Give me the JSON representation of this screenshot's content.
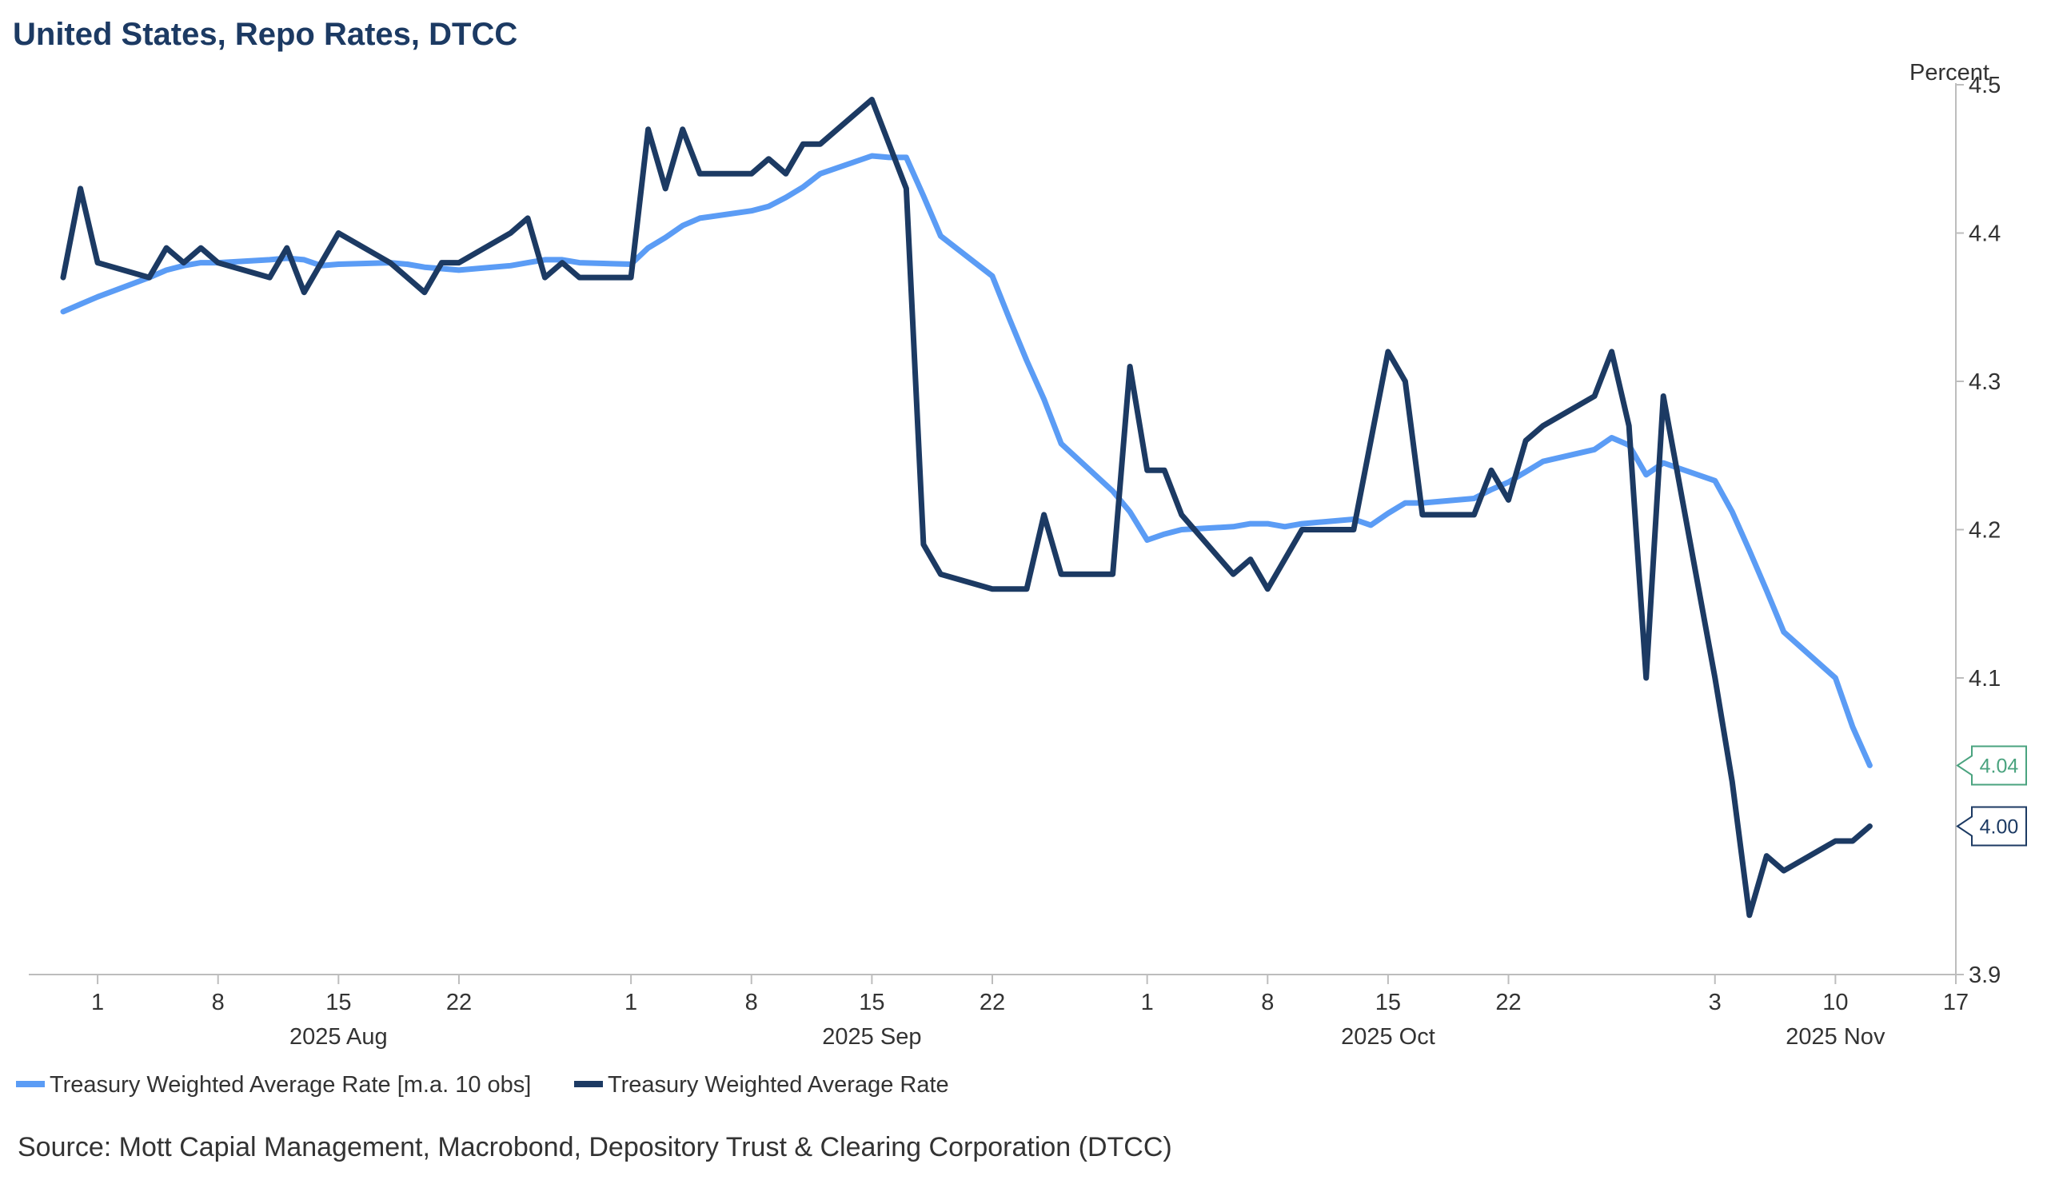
{
  "chart_data": {
    "type": "line",
    "title": "United States, Repo Rates, DTCC",
    "y_unit_label": "Percent",
    "ylim": [
      3.9,
      4.5
    ],
    "y_ticks": [
      "3.9",
      "4.0",
      "4.1",
      "4.2",
      "4.3",
      "4.4",
      "4.5"
    ],
    "y_tick_values": [
      3.9,
      4.0,
      4.1,
      4.2,
      4.3,
      4.4,
      4.5
    ],
    "x_range": [
      "2025-07-28",
      "2025-11-17"
    ],
    "x_ticks": [
      {
        "date": "2025-08-01",
        "label": "1"
      },
      {
        "date": "2025-08-08",
        "label": "8"
      },
      {
        "date": "2025-08-15",
        "label": "15"
      },
      {
        "date": "2025-08-22",
        "label": "22"
      },
      {
        "date": "2025-09-01",
        "label": "1"
      },
      {
        "date": "2025-09-08",
        "label": "8"
      },
      {
        "date": "2025-09-15",
        "label": "15"
      },
      {
        "date": "2025-09-22",
        "label": "22"
      },
      {
        "date": "2025-10-01",
        "label": "1"
      },
      {
        "date": "2025-10-08",
        "label": "8"
      },
      {
        "date": "2025-10-15",
        "label": "15"
      },
      {
        "date": "2025-10-22",
        "label": "22"
      },
      {
        "date": "2025-11-03",
        "label": "3"
      },
      {
        "date": "2025-11-10",
        "label": "10"
      },
      {
        "date": "2025-11-17",
        "label": "17"
      }
    ],
    "month_labels": [
      {
        "date": "2025-08-15",
        "label": "2025 Aug"
      },
      {
        "date": "2025-09-15",
        "label": "2025 Sep"
      },
      {
        "date": "2025-10-15",
        "label": "2025 Oct"
      },
      {
        "date": "2025-11-10",
        "label": "2025 Nov"
      }
    ],
    "grid": false,
    "legend_position": "bottom-left",
    "series": [
      {
        "name": "Treasury Weighted Average Rate [m.a. 10 obs]",
        "color": "#5b9cf5",
        "last_value_label": "4.04",
        "label_color": "#4aa37f",
        "points": [
          [
            "2025-07-30",
            4.347
          ],
          [
            "2025-07-31",
            4.352
          ],
          [
            "2025-08-01",
            4.357
          ],
          [
            "2025-08-04",
            4.37
          ],
          [
            "2025-08-05",
            4.375
          ],
          [
            "2025-08-06",
            4.378
          ],
          [
            "2025-08-07",
            4.38
          ],
          [
            "2025-08-08",
            4.38
          ],
          [
            "2025-08-11",
            4.382
          ],
          [
            "2025-08-12",
            4.383
          ],
          [
            "2025-08-13",
            4.382
          ],
          [
            "2025-08-14",
            4.378
          ],
          [
            "2025-08-15",
            4.379
          ],
          [
            "2025-08-18",
            4.38
          ],
          [
            "2025-08-19",
            4.379
          ],
          [
            "2025-08-20",
            4.377
          ],
          [
            "2025-08-21",
            4.376
          ],
          [
            "2025-08-22",
            4.375
          ],
          [
            "2025-08-25",
            4.378
          ],
          [
            "2025-08-26",
            4.38
          ],
          [
            "2025-08-27",
            4.382
          ],
          [
            "2025-08-28",
            4.382
          ],
          [
            "2025-08-29",
            4.38
          ],
          [
            "2025-09-01",
            4.379
          ],
          [
            "2025-09-02",
            4.39
          ],
          [
            "2025-09-03",
            4.397
          ],
          [
            "2025-09-04",
            4.405
          ],
          [
            "2025-09-05",
            4.41
          ],
          [
            "2025-09-08",
            4.415
          ],
          [
            "2025-09-09",
            4.418
          ],
          [
            "2025-09-10",
            4.424
          ],
          [
            "2025-09-11",
            4.431
          ],
          [
            "2025-09-12",
            4.44
          ],
          [
            "2025-09-15",
            4.452
          ],
          [
            "2025-09-16",
            4.451
          ],
          [
            "2025-09-17",
            4.451
          ],
          [
            "2025-09-18",
            4.425
          ],
          [
            "2025-09-19",
            4.398
          ],
          [
            "2025-09-22",
            4.371
          ],
          [
            "2025-09-23",
            4.342
          ],
          [
            "2025-09-24",
            4.314
          ],
          [
            "2025-09-25",
            4.288
          ],
          [
            "2025-09-26",
            4.258
          ],
          [
            "2025-09-29",
            4.226
          ],
          [
            "2025-09-30",
            4.212
          ],
          [
            "2025-10-01",
            4.193
          ],
          [
            "2025-10-02",
            4.197
          ],
          [
            "2025-10-03",
            4.2
          ],
          [
            "2025-10-06",
            4.202
          ],
          [
            "2025-10-07",
            4.204
          ],
          [
            "2025-10-08",
            4.204
          ],
          [
            "2025-10-09",
            4.202
          ],
          [
            "2025-10-10",
            4.204
          ],
          [
            "2025-10-13",
            4.207
          ],
          [
            "2025-10-14",
            4.203
          ],
          [
            "2025-10-15",
            4.211
          ],
          [
            "2025-10-16",
            4.218
          ],
          [
            "2025-10-17",
            4.218
          ],
          [
            "2025-10-20",
            4.221
          ],
          [
            "2025-10-21",
            4.227
          ],
          [
            "2025-10-22",
            4.232
          ],
          [
            "2025-10-23",
            4.239
          ],
          [
            "2025-10-24",
            4.246
          ],
          [
            "2025-10-27",
            4.254
          ],
          [
            "2025-10-28",
            4.262
          ],
          [
            "2025-10-29",
            4.257
          ],
          [
            "2025-10-30",
            4.237
          ],
          [
            "2025-10-31",
            4.245
          ],
          [
            "2025-11-03",
            4.233
          ],
          [
            "2025-11-04",
            4.212
          ],
          [
            "2025-11-05",
            4.186
          ],
          [
            "2025-11-06",
            4.159
          ],
          [
            "2025-11-07",
            4.131
          ],
          [
            "2025-11-10",
            4.1
          ],
          [
            "2025-11-11",
            4.067
          ],
          [
            "2025-11-12",
            4.041
          ]
        ]
      },
      {
        "name": "Treasury Weighted Average Rate",
        "color": "#1c3a63",
        "last_value_label": "4.00",
        "label_color": "#1c3a63",
        "points": [
          [
            "2025-07-30",
            4.37
          ],
          [
            "2025-07-31",
            4.43
          ],
          [
            "2025-08-01",
            4.38
          ],
          [
            "2025-08-04",
            4.37
          ],
          [
            "2025-08-05",
            4.39
          ],
          [
            "2025-08-06",
            4.38
          ],
          [
            "2025-08-07",
            4.39
          ],
          [
            "2025-08-08",
            4.38
          ],
          [
            "2025-08-11",
            4.37
          ],
          [
            "2025-08-12",
            4.39
          ],
          [
            "2025-08-13",
            4.36
          ],
          [
            "2025-08-14",
            4.38
          ],
          [
            "2025-08-15",
            4.4
          ],
          [
            "2025-08-18",
            4.38
          ],
          [
            "2025-08-19",
            4.37
          ],
          [
            "2025-08-20",
            4.36
          ],
          [
            "2025-08-21",
            4.38
          ],
          [
            "2025-08-22",
            4.38
          ],
          [
            "2025-08-25",
            4.4
          ],
          [
            "2025-08-26",
            4.41
          ],
          [
            "2025-08-27",
            4.37
          ],
          [
            "2025-08-28",
            4.38
          ],
          [
            "2025-08-29",
            4.37
          ],
          [
            "2025-09-01",
            4.37
          ],
          [
            "2025-09-02",
            4.47
          ],
          [
            "2025-09-03",
            4.43
          ],
          [
            "2025-09-04",
            4.47
          ],
          [
            "2025-09-05",
            4.44
          ],
          [
            "2025-09-08",
            4.44
          ],
          [
            "2025-09-09",
            4.45
          ],
          [
            "2025-09-10",
            4.44
          ],
          [
            "2025-09-11",
            4.46
          ],
          [
            "2025-09-12",
            4.46
          ],
          [
            "2025-09-15",
            4.49
          ],
          [
            "2025-09-16",
            4.46
          ],
          [
            "2025-09-17",
            4.43
          ],
          [
            "2025-09-18",
            4.19
          ],
          [
            "2025-09-19",
            4.17
          ],
          [
            "2025-09-22",
            4.16
          ],
          [
            "2025-09-23",
            4.16
          ],
          [
            "2025-09-24",
            4.16
          ],
          [
            "2025-09-25",
            4.21
          ],
          [
            "2025-09-26",
            4.17
          ],
          [
            "2025-09-29",
            4.17
          ],
          [
            "2025-09-30",
            4.31
          ],
          [
            "2025-10-01",
            4.24
          ],
          [
            "2025-10-02",
            4.24
          ],
          [
            "2025-10-03",
            4.21
          ],
          [
            "2025-10-06",
            4.17
          ],
          [
            "2025-10-07",
            4.18
          ],
          [
            "2025-10-08",
            4.16
          ],
          [
            "2025-10-09",
            4.18
          ],
          [
            "2025-10-10",
            4.2
          ],
          [
            "2025-10-13",
            4.2
          ],
          [
            "2025-10-14",
            4.26
          ],
          [
            "2025-10-15",
            4.32
          ],
          [
            "2025-10-16",
            4.3
          ],
          [
            "2025-10-17",
            4.21
          ],
          [
            "2025-10-20",
            4.21
          ],
          [
            "2025-10-21",
            4.24
          ],
          [
            "2025-10-22",
            4.22
          ],
          [
            "2025-10-23",
            4.26
          ],
          [
            "2025-10-24",
            4.27
          ],
          [
            "2025-10-27",
            4.29
          ],
          [
            "2025-10-28",
            4.32
          ],
          [
            "2025-10-29",
            4.27
          ],
          [
            "2025-10-30",
            4.1
          ],
          [
            "2025-10-31",
            4.29
          ],
          [
            "2025-11-03",
            4.1
          ],
          [
            "2025-11-04",
            4.03
          ],
          [
            "2025-11-05",
            3.94
          ],
          [
            "2025-11-06",
            3.98
          ],
          [
            "2025-11-07",
            3.97
          ],
          [
            "2025-11-10",
            3.99
          ],
          [
            "2025-11-11",
            3.99
          ],
          [
            "2025-11-12",
            4.0
          ]
        ]
      }
    ]
  },
  "source": "Source: Mott Capial Management, Macrobond, Depository Trust & Clearing Corporation (DTCC)"
}
